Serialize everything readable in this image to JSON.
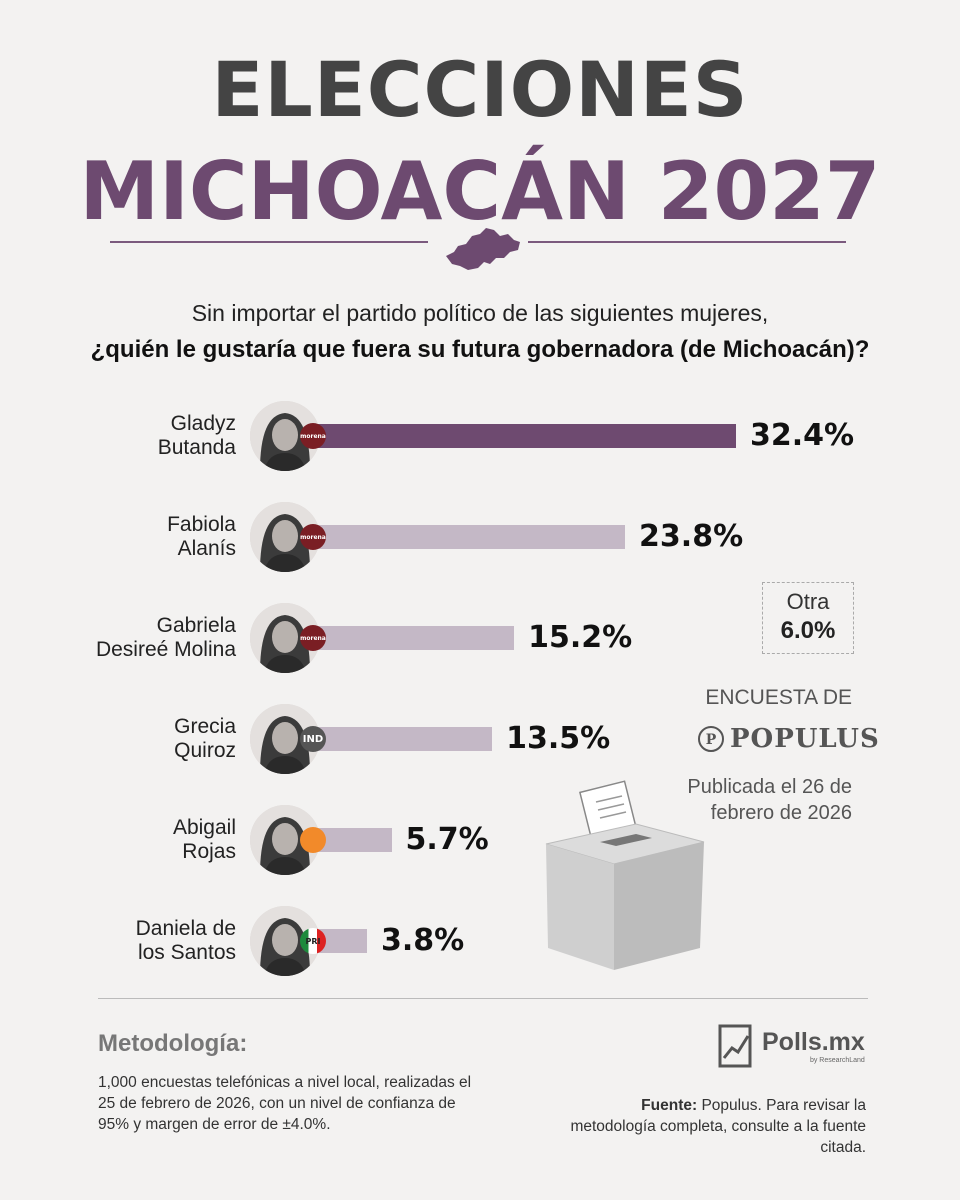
{
  "header": {
    "title_line1": "ELECCIONES",
    "title_line2": "MICHOACÁN 2027",
    "question_line1": "Sin importar el partido político de las siguientes mujeres,",
    "question_line2": "¿quién le gustaría que fuera su futura gobernadora (de Michoacán)?"
  },
  "chart_data": {
    "type": "bar",
    "orientation": "horizontal",
    "categories": [
      "Gladyz Butanda",
      "Fabiola Alanís",
      "Gabriela Desireé Molina",
      "Grecia Quiroz",
      "Abigail Rojas",
      "Daniela de los Santos"
    ],
    "values": [
      32.4,
      23.8,
      15.2,
      13.5,
      5.7,
      3.8
    ],
    "value_labels": [
      "32.4%",
      "23.8%",
      "15.2%",
      "13.5%",
      "5.7%",
      "3.8%"
    ],
    "name_lines": [
      [
        "Gladyz",
        "Butanda"
      ],
      [
        "Fabiola",
        "Alanís"
      ],
      [
        "Gabriela",
        "Desireé Molina"
      ],
      [
        "Grecia",
        "Quiroz"
      ],
      [
        "Abigail",
        "Rojas"
      ],
      [
        "Daniela de",
        "los Santos"
      ]
    ],
    "parties": [
      "morena",
      "morena",
      "morena",
      "IND",
      "MC",
      "PRI"
    ],
    "bar_colors": [
      "#6e4a70",
      "#c4b8c6",
      "#c4b8c6",
      "#c4b8c6",
      "#c4b8c6",
      "#c4b8c6"
    ],
    "unit": "%",
    "other": {
      "label": "Otra",
      "value": 6.0,
      "value_label": "6.0%"
    }
  },
  "badges": {
    "morena": "morena",
    "IND": "IND",
    "MC": "",
    "PRI": "PRI"
  },
  "source_panel": {
    "survey_label": "ENCUESTA DE",
    "pollster": "POPULUS",
    "published_line1": "Publicada el 26 de",
    "published_line2": "febrero de 2026"
  },
  "footer": {
    "methodology_title": "Metodología:",
    "methodology_text": "1,000 encuestas telefónicas a nivel local, realizadas el 25 de febrero de 2026, con un nivel de confianza de 95% y margen de error de ±4.0%.",
    "brand": "Polls.mx",
    "brand_sub": "by ResearchLand",
    "source_label": "Fuente:",
    "source_text": " Populus. Para revisar la metodología completa, consulte a la fuente citada."
  },
  "colors": {
    "accent": "#6d4a70",
    "title_gray": "#444444",
    "bar_light": "#c4b8c6",
    "morena": "#7a1e24"
  }
}
